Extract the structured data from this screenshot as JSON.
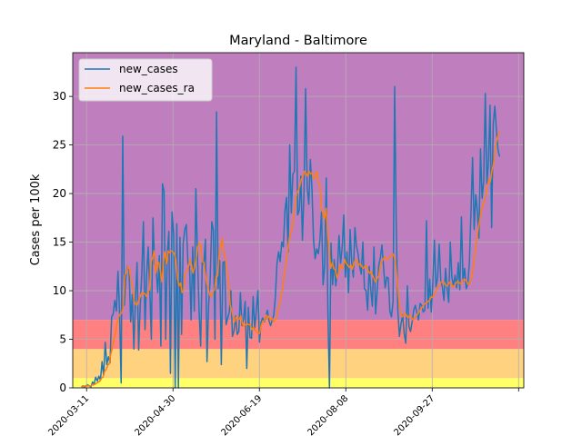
{
  "chart_data": {
    "type": "line",
    "title": "Maryland - Baltimore",
    "xlabel": "",
    "ylabel": "Cases per 100k",
    "x_start": "2020-03-08",
    "x_end": "2020-11-05",
    "xlim": [
      "2020-03-03",
      "2020-11-19"
    ],
    "ylim": [
      0,
      34.5
    ],
    "xticks": [
      "2020-03-11",
      "2020-04-30",
      "2020-06-19",
      "2020-08-08",
      "2020-09-27",
      "2020-11-16"
    ],
    "xtick_labels": [
      "2020-03-11",
      "2020-04-30",
      "2020-06-19",
      "2020-08-08",
      "2020-09-27",
      ""
    ],
    "yticks": [
      0,
      5,
      10,
      15,
      20,
      25,
      30
    ],
    "grid": true,
    "legend_position": "upper-left",
    "risk_bands": [
      {
        "from": 0,
        "to": 1,
        "color": "#ffff66"
      },
      {
        "from": 1,
        "to": 4,
        "color": "#ffd280"
      },
      {
        "from": 4,
        "to": 7,
        "color": "#ff8080"
      },
      {
        "from": 7,
        "to": 34.5,
        "color": "#bf7fbf"
      }
    ],
    "series": [
      {
        "name": "new_cases",
        "color": "#1f77b4",
        "values": [
          0.1,
          0.2,
          0.1,
          0.2,
          0.3,
          0.2,
          0.1,
          0.6,
          0.4,
          1.1,
          0.7,
          1.2,
          0.8,
          2.7,
          1.3,
          4.7,
          2.4,
          3.2,
          2.6,
          7.3,
          7.6,
          9.0,
          7.9,
          12.0,
          7.8,
          0.5,
          25.9,
          8.5,
          11.5,
          12.5,
          12.0,
          6.8,
          9.6,
          4.0,
          9.2,
          12.9,
          3.9,
          8.4,
          11.8,
          17.1,
          6.0,
          11.5,
          14.5,
          10.2,
          5.0,
          17.5,
          12.8,
          12.4,
          9.8,
          13.6,
          4.3,
          21.0,
          20.2,
          5.0,
          13.7,
          16.1,
          1.5,
          18.1,
          15.8,
          0.0,
          16.9,
          0.0,
          15.5,
          5.5,
          14.8,
          16.3,
          16.8,
          12.8,
          12.5,
          7.0,
          14.5,
          7.9,
          20.5,
          13.5,
          8.0,
          4.3,
          13.0,
          12.7,
          15.3,
          2.7,
          8.5,
          11.2,
          17.1,
          16.2,
          5.0,
          28.4,
          10.2,
          13.1,
          2.4,
          12.9,
          13.0,
          6.5,
          7.2,
          7.8,
          10.0,
          5.3,
          5.9,
          7.4,
          5.5,
          5.8,
          9.8,
          6.4,
          7.1,
          8.9,
          2.0,
          8.3,
          5.2,
          5.1,
          9.4,
          6.0,
          8.0,
          10.0,
          4.7,
          6.8,
          7.2,
          6.8,
          7.4,
          8.0,
          6.9,
          6.4,
          7.0,
          7.5,
          9.4,
          12.8,
          14.0,
          13.0,
          15.0,
          14.5,
          18.2,
          19.6,
          14.0,
          25.0,
          18.0,
          22.0,
          22.3,
          33.0,
          17.8,
          18.3,
          21.8,
          15.2,
          20.2,
          30.8,
          20.6,
          18.9,
          23.5,
          20.5,
          15.2,
          13.3,
          14.3,
          13.8,
          15.2,
          18.1,
          10.6,
          12.6,
          21.6,
          8.1,
          0.0,
          14.9,
          10.6,
          13.2,
          10.5,
          12.2,
          15.7,
          12.8,
          14.5,
          17.8,
          11.4,
          14.0,
          9.8,
          16.3,
          12.9,
          11.4,
          16.5,
          14.6,
          13.8,
          12.5,
          11.7,
          15.0,
          10.2,
          10.0,
          8.0,
          12.5,
          10.1,
          8.4,
          14.5,
          7.6,
          10.0,
          12.6,
          13.4,
          14.7,
          12.5,
          10.3,
          11.4,
          11.3,
          7.9,
          7.3,
          8.9,
          31.0,
          16.8,
          8.0,
          5.3,
          6.6,
          7.5,
          5.6,
          4.6,
          10.5,
          6.3,
          5.8,
          6.8,
          8.0,
          8.5,
          7.7,
          7.0,
          8.7,
          8.5,
          7.8,
          8.0,
          17.2,
          8.2,
          11.2,
          7.8,
          10.8,
          15.2,
          10.4,
          11.3,
          14.8,
          11.1,
          10.4,
          9.0,
          12.3,
          10.2,
          8.8,
          15.0,
          11.4,
          10.5,
          11.6,
          10.3,
          12.9,
          10.1,
          17.6,
          11.0,
          12.3,
          10.2,
          10.7,
          12.9,
          18.1,
          23.7,
          16.3,
          19.9,
          18.2,
          15.4,
          24.6,
          19.5,
          21.3,
          30.3,
          21.0,
          23.3,
          29.1,
          16.5,
          27.2,
          29.0,
          26.5,
          24.5,
          23.8
        ]
      },
      {
        "name": "new_cases_ra",
        "color": "#ff7f0e",
        "values": [
          0.1,
          0.1,
          0.2,
          0.2,
          0.2,
          0.2,
          0.2,
          0.3,
          0.3,
          0.4,
          0.5,
          0.6,
          0.7,
          1.0,
          1.1,
          1.7,
          1.9,
          2.3,
          2.5,
          3.5,
          4.1,
          5.0,
          5.6,
          6.7,
          7.3,
          7.6,
          7.7,
          8.3,
          11.6,
          11.8,
          12.5,
          12.2,
          11.1,
          10.6,
          9.0,
          8.6,
          8.5,
          9.0,
          9.4,
          9.8,
          9.7,
          9.7,
          9.4,
          9.9,
          10.1,
          13.0,
          13.4,
          14.1,
          11.8,
          12.9,
          12.9,
          12.0,
          10.9,
          13.0,
          14.0,
          12.8,
          14.1,
          13.9,
          14.1,
          14.0,
          13.8,
          13.2,
          11.3,
          10.5,
          10.8,
          9.8,
          10.1,
          11.8,
          12.0,
          12.4,
          13.2,
          12.7,
          11.8,
          12.4,
          13.2,
          14.5,
          14.9,
          14.8,
          13.0,
          12.9,
          11.7,
          10.7,
          10.2,
          9.5,
          9.4,
          9.9,
          10.1,
          11.5,
          11.5,
          14.0,
          14.6,
          15.4,
          13.9,
          13.3,
          12.0,
          11.0,
          8.6,
          8.0,
          7.2,
          6.8,
          7.3,
          7.0,
          7.1,
          7.4,
          6.6,
          6.3,
          6.5,
          6.6,
          6.5,
          6.5,
          6.0,
          6.2,
          6.1,
          5.7,
          5.7,
          5.6,
          6.4,
          6.8,
          6.9,
          7.5,
          7.1,
          7.4,
          7.0,
          7.2,
          6.8,
          7.0,
          7.2,
          8.1,
          8.6,
          9.5,
          10.3,
          11.8,
          12.7,
          14.0,
          15.2,
          16.0,
          16.3,
          17.7,
          18.8,
          20.0,
          20.3,
          20.8,
          21.5,
          21.7,
          22.3,
          22.1,
          21.8,
          22.3,
          22.0,
          22.1,
          21.5,
          21.8,
          22.3,
          21.2,
          20.8,
          18.5,
          17.9,
          17.4,
          18.5,
          15.7,
          14.0,
          12.3,
          12.9,
          12.3,
          12.1,
          11.3,
          11.8,
          12.7,
          12.3,
          12.3,
          13.2,
          12.8,
          12.6,
          12.4,
          12.7,
          12.2,
          12.9,
          13.2,
          13.1,
          12.6,
          12.8,
          12.5,
          12.3,
          12.5,
          12.6,
          12.1,
          11.8,
          12.0,
          11.6,
          11.2,
          10.9,
          11.3,
          11.5,
          12.6,
          13.0,
          13.3,
          13.5,
          13.2,
          13.2,
          13.5,
          13.6,
          13.8,
          13.5,
          12.5,
          10.8,
          9.0,
          7.8,
          7.3,
          7.5,
          7.7,
          7.4,
          7.2,
          7.5,
          7.3,
          7.0,
          7.1,
          7.3,
          7.6,
          7.8,
          8.1,
          8.3,
          8.5,
          8.7,
          8.8,
          8.9,
          9.1,
          9.4,
          9.3,
          9.7,
          10.0,
          10.3,
          10.5,
          10.8,
          11.0,
          10.9,
          10.6,
          10.5,
          10.7,
          10.9,
          10.6,
          10.4,
          10.6,
          10.8,
          11.0,
          10.8,
          10.7,
          11.0,
          11.2,
          11.1,
          10.9,
          10.6,
          10.8,
          11.5,
          12.4,
          13.8,
          15.0,
          16.2,
          17.1,
          18.0,
          18.7,
          19.2,
          19.8,
          20.8,
          21.4,
          21.2,
          22.3,
          23.0,
          24.2,
          25.4,
          26.0,
          26.4
        ]
      }
    ]
  }
}
